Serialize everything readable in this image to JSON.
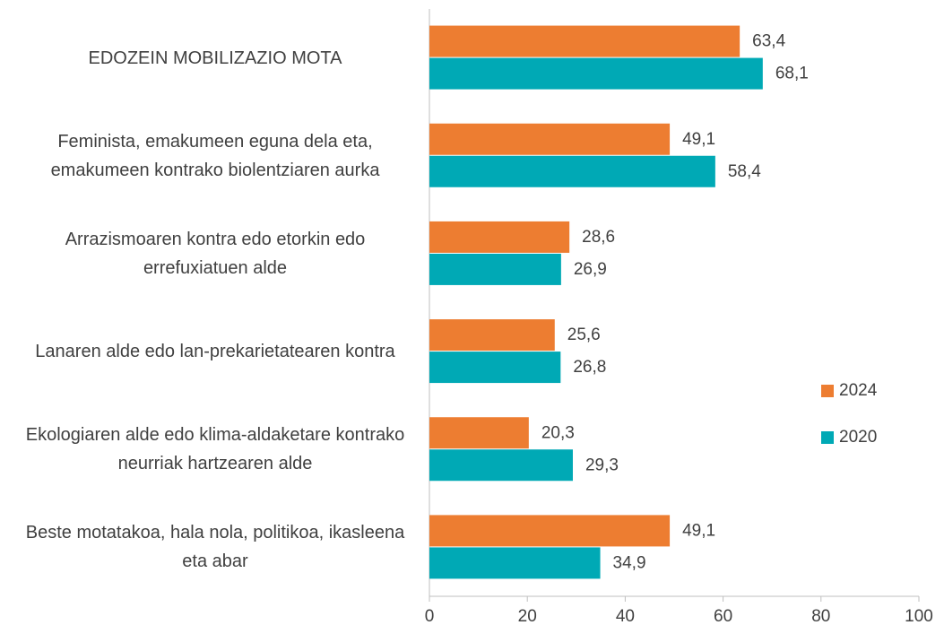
{
  "chart_data": {
    "type": "bar",
    "orientation": "horizontal",
    "categories": [
      "EDOZEIN MOBILIZAZIO MOTA",
      "Feminista, emakumeen eguna dela eta, emakumeen kontrako biolentziaren aurka",
      "Arrazismoaren kontra edo etorkin edo errefuxiatuen alde",
      "Lanaren alde edo lan-prekarietatearen kontra",
      "Ekologiaren alde edo klima-aldaketare kontrako neurriak hartzearen alde",
      "Beste motatakoa, hala nola, politikoa, ikasleena eta abar"
    ],
    "series": [
      {
        "name": "2024",
        "color": "#ed7d31",
        "values": [
          63.4,
          49.1,
          28.6,
          25.6,
          20.3,
          49.1
        ],
        "value_labels": [
          "63,4",
          "49,1",
          "28,6",
          "25,6",
          "20,3",
          "49,1"
        ]
      },
      {
        "name": "2020",
        "color": "#00a9b5",
        "values": [
          68.1,
          58.4,
          26.9,
          26.8,
          29.3,
          34.9
        ],
        "value_labels": [
          "68,1",
          "58,4",
          "26,9",
          "26,8",
          "29,3",
          "34,9"
        ]
      }
    ],
    "xlim": [
      0,
      100
    ],
    "xticks": [
      0,
      20,
      40,
      60,
      80,
      100
    ],
    "legend": "right"
  }
}
